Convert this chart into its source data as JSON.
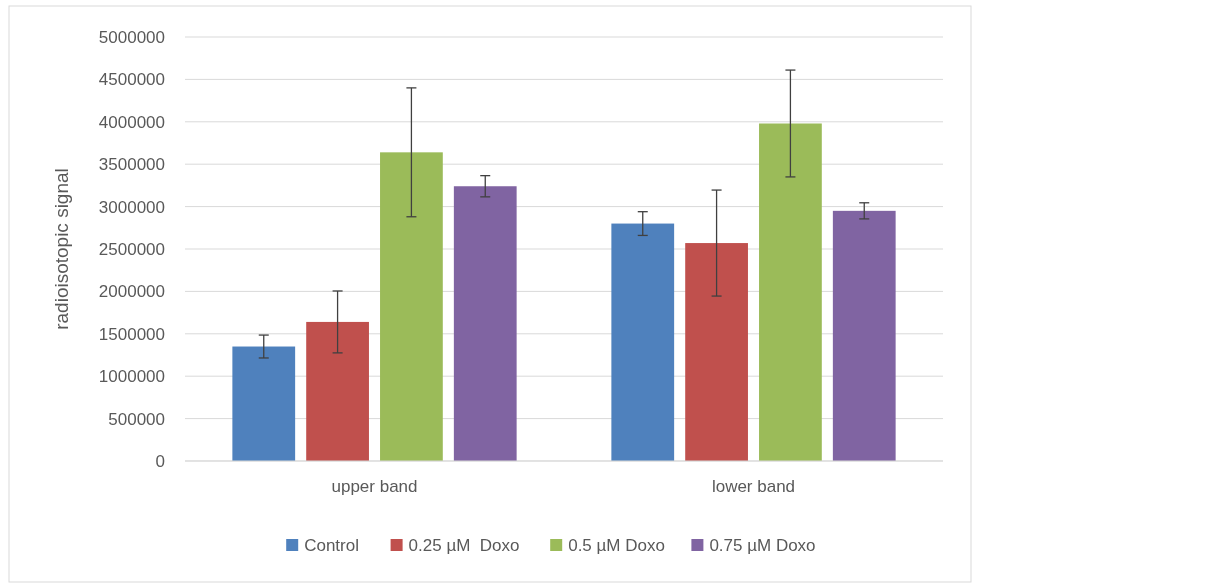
{
  "chart_data": {
    "type": "bar",
    "ylabel": "radioisotopic signal",
    "categories": [
      "upper band",
      "lower band"
    ],
    "series": [
      {
        "name": "Control",
        "color": "#4f81bd",
        "values": [
          1350000,
          2800000
        ],
        "errors": [
          135000,
          140000
        ]
      },
      {
        "name": "0.25 µM  Doxo",
        "color": "#c0504d",
        "values": [
          1640000,
          2570000
        ],
        "errors": [
          365000,
          625000
        ]
      },
      {
        "name": "0.5 µM Doxo",
        "color": "#9bbb59",
        "values": [
          3640000,
          3980000
        ],
        "errors": [
          760000,
          630000
        ]
      },
      {
        "name": "0.75 µM Doxo",
        "color": "#8064a2",
        "values": [
          3240000,
          2950000
        ],
        "errors": [
          125000,
          95000
        ]
      }
    ],
    "ylim": [
      0,
      5000000
    ],
    "yticks": [
      0,
      500000,
      1000000,
      1500000,
      2000000,
      2500000,
      3000000,
      3500000,
      4000000,
      4500000,
      5000000
    ],
    "grid": "y",
    "legend": "bottom"
  }
}
